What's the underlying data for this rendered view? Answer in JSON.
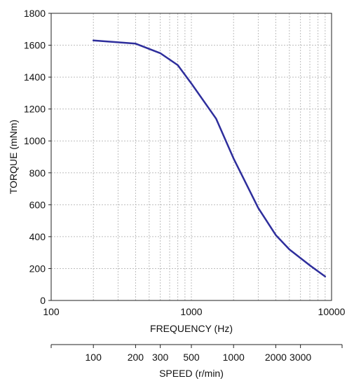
{
  "chart_data": {
    "type": "line",
    "title": "",
    "xlabel": "FREQUENCY (Hz)",
    "ylabel": "TORQUE (mNm)",
    "xscale": "log",
    "xlim": [
      100,
      10000
    ],
    "ylim": [
      0,
      1800
    ],
    "xticks": [
      {
        "value": 100,
        "label": "100"
      },
      {
        "value": 1000,
        "label": "1000"
      },
      {
        "value": 10000,
        "label": "10000"
      }
    ],
    "yticks": [
      {
        "value": 0,
        "label": "0"
      },
      {
        "value": 200,
        "label": "200"
      },
      {
        "value": 400,
        "label": "400"
      },
      {
        "value": 600,
        "label": "600"
      },
      {
        "value": 800,
        "label": "800"
      },
      {
        "value": 1000,
        "label": "1000"
      },
      {
        "value": 1200,
        "label": "1200"
      },
      {
        "value": 1400,
        "label": "1400"
      },
      {
        "value": 1600,
        "label": "1600"
      },
      {
        "value": 1800,
        "label": "1800"
      }
    ],
    "grid": true,
    "legend": "none",
    "series": [
      {
        "color": "#2e2e9c",
        "x": [
          200,
          400,
          600,
          800,
          1000,
          1500,
          2000,
          3000,
          4000,
          5000,
          7000,
          9000
        ],
        "y": [
          1630,
          1610,
          1550,
          1475,
          1360,
          1140,
          890,
          580,
          410,
          320,
          220,
          150
        ]
      }
    ],
    "secondary_x_axis": {
      "label": "SPEED (r/min)",
      "scale": "log",
      "ticks": [
        {
          "freq": 200,
          "label": "100"
        },
        {
          "freq": 400,
          "label": "200"
        },
        {
          "freq": 600,
          "label": "300"
        },
        {
          "freq": 1000,
          "label": "500"
        },
        {
          "freq": 2000,
          "label": "1000"
        },
        {
          "freq": 4000,
          "label": "2000"
        },
        {
          "freq": 6000,
          "label": "3000"
        }
      ]
    }
  }
}
